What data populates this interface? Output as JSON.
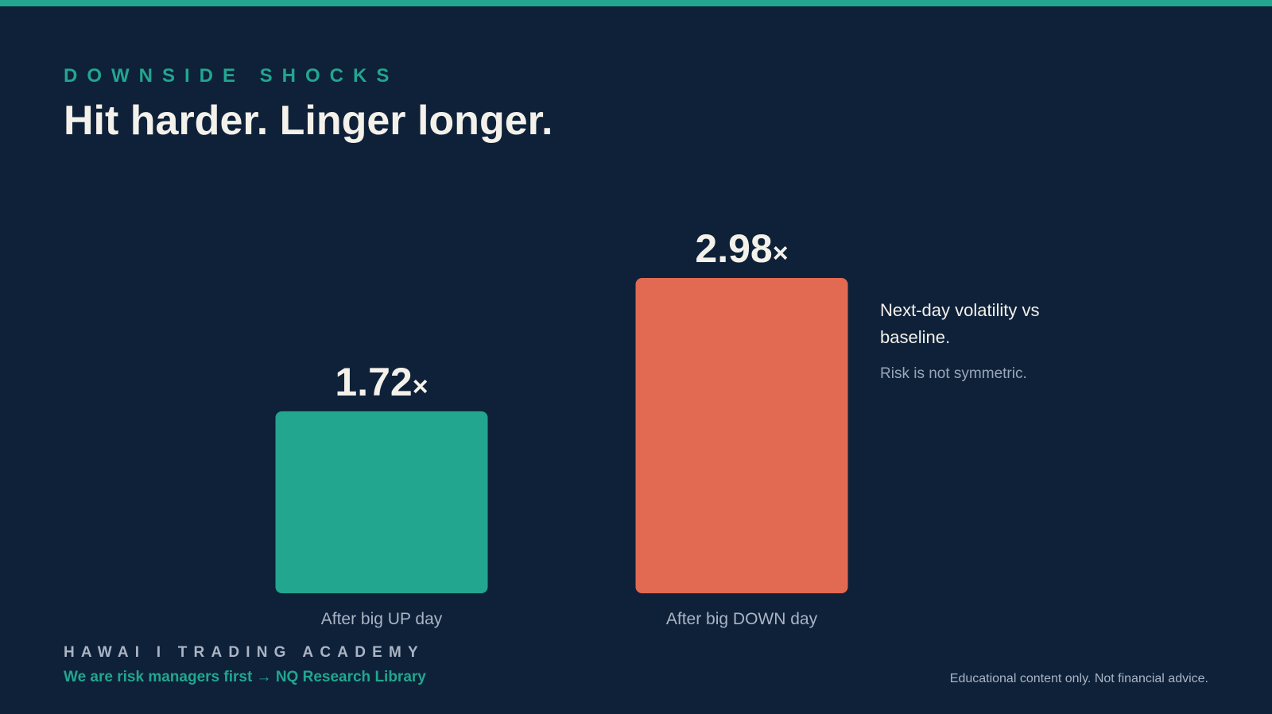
{
  "header": {
    "eyebrow": "DOWNSIDE SHOCKS",
    "headline": "Hit harder. Linger longer."
  },
  "note": {
    "title": "Next-day volatility vs baseline.",
    "subtitle": "Risk is not symmetric."
  },
  "footer": {
    "brand": "HAWAI I TRADING ACADEMY",
    "tagline": "We are risk managers first → NQ Research Library",
    "disclaimer": "Educational content only. Not financial advice."
  },
  "colors": {
    "background": "#0e2139",
    "accent": "#22a68f",
    "down": "#e26a52",
    "text": "#f4f1ea",
    "muted": "#9aa6b8"
  },
  "chart_data": {
    "type": "bar",
    "categories": [
      "After big UP day",
      "After big DOWN day"
    ],
    "values": [
      1.72,
      2.98
    ],
    "value_labels": [
      "1.72",
      "2.98"
    ],
    "value_suffix": "×",
    "bar_colors": [
      "#22a68f",
      "#e26a52"
    ],
    "title": "",
    "xlabel": "",
    "ylabel": "",
    "ylim": [
      0,
      2.98
    ],
    "grid": false,
    "legend": "none"
  }
}
